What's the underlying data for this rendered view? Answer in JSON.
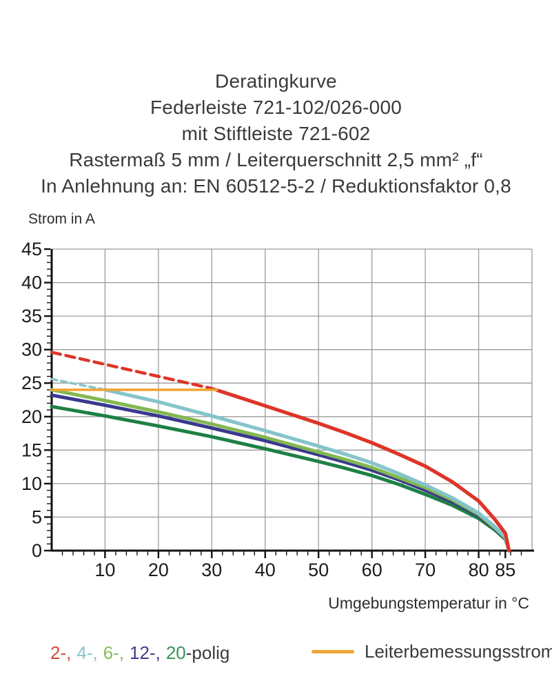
{
  "title_lines": [
    "Deratingkurve",
    "Federleiste 721-102/026-000",
    "mit Stiftleiste 721-602",
    "Rastermaß 5 mm / Leiterquerschnitt 2,5 mm² „f“",
    "In Anlehnung an: EN 60512-5-2 / Reduktionsfaktor 0,8"
  ],
  "chart_data": {
    "type": "line",
    "title": "Deratingkurve Federleiste 721-102/026-000 mit Stiftleiste 721-602",
    "ylabel": "Strom in A",
    "xlabel": "Umgebungstemperatur in °C",
    "xlim": [
      0,
      90
    ],
    "ylim": [
      0,
      45
    ],
    "x_major_ticks": [
      10,
      20,
      30,
      40,
      50,
      60,
      70,
      80,
      85
    ],
    "y_major_ticks": [
      0,
      5,
      10,
      15,
      20,
      25,
      30,
      35,
      40,
      45
    ],
    "x_minor_step": 2,
    "y_minor_step": 1,
    "grid": true,
    "grid_color": "#9b9b9b",
    "x": [
      0,
      10,
      20,
      30,
      40,
      50,
      55,
      60,
      65,
      70,
      75,
      80,
      83,
      85,
      85.7
    ],
    "series": [
      {
        "name": "2-polig",
        "color": "#dd3528",
        "dash_until_x": 31,
        "dash": "13 8",
        "values": [
          29.6,
          27.8,
          26.0,
          24.2,
          21.6,
          19.0,
          17.6,
          16.1,
          14.4,
          12.6,
          10.3,
          7.4,
          4.7,
          2.6,
          0
        ]
      },
      {
        "name": "4-polig",
        "color": "#85c4cb",
        "dash_until_x": 10,
        "dash": "8 6",
        "values": [
          25.6,
          24.0,
          22.2,
          20.1,
          17.9,
          15.6,
          14.4,
          13.1,
          11.5,
          9.8,
          7.9,
          5.6,
          3.6,
          2.0,
          0
        ]
      },
      {
        "name": "6-polig",
        "color": "#82b850",
        "values": [
          24.0,
          22.4,
          20.7,
          18.9,
          16.9,
          14.7,
          13.6,
          12.4,
          10.9,
          9.4,
          7.6,
          5.4,
          3.4,
          1.9,
          0
        ]
      },
      {
        "name": "12-polig",
        "color": "#3a398d",
        "values": [
          23.2,
          21.7,
          20.1,
          18.3,
          16.4,
          14.3,
          13.2,
          12.0,
          10.6,
          9.0,
          7.3,
          5.2,
          3.3,
          1.8,
          0
        ]
      },
      {
        "name": "20-polig",
        "color": "#1d8046",
        "values": [
          21.5,
          20.1,
          18.6,
          17.0,
          15.2,
          13.3,
          12.3,
          11.2,
          9.9,
          8.4,
          6.8,
          4.8,
          3.1,
          1.7,
          0
        ]
      }
    ],
    "rated_line": {
      "name": "Leiterbemessungsstrom",
      "color": "#f1a434",
      "y": 24,
      "x_from": 0,
      "x_to": 31
    },
    "legend_position": "bottom"
  },
  "legend": {
    "poles": [
      {
        "label": "2-,",
        "color": "#d6463b"
      },
      {
        "label": "4-,",
        "color": "#85c4cb"
      },
      {
        "label": "6-,",
        "color": "#8abb55"
      },
      {
        "label": "12-,",
        "color": "#3d3b8e"
      },
      {
        "label": "20",
        "color": "#389459"
      }
    ],
    "suffix": "-polig",
    "rated_label": "Leiterbemessungsstrom",
    "rated_color": "#f1a434"
  }
}
